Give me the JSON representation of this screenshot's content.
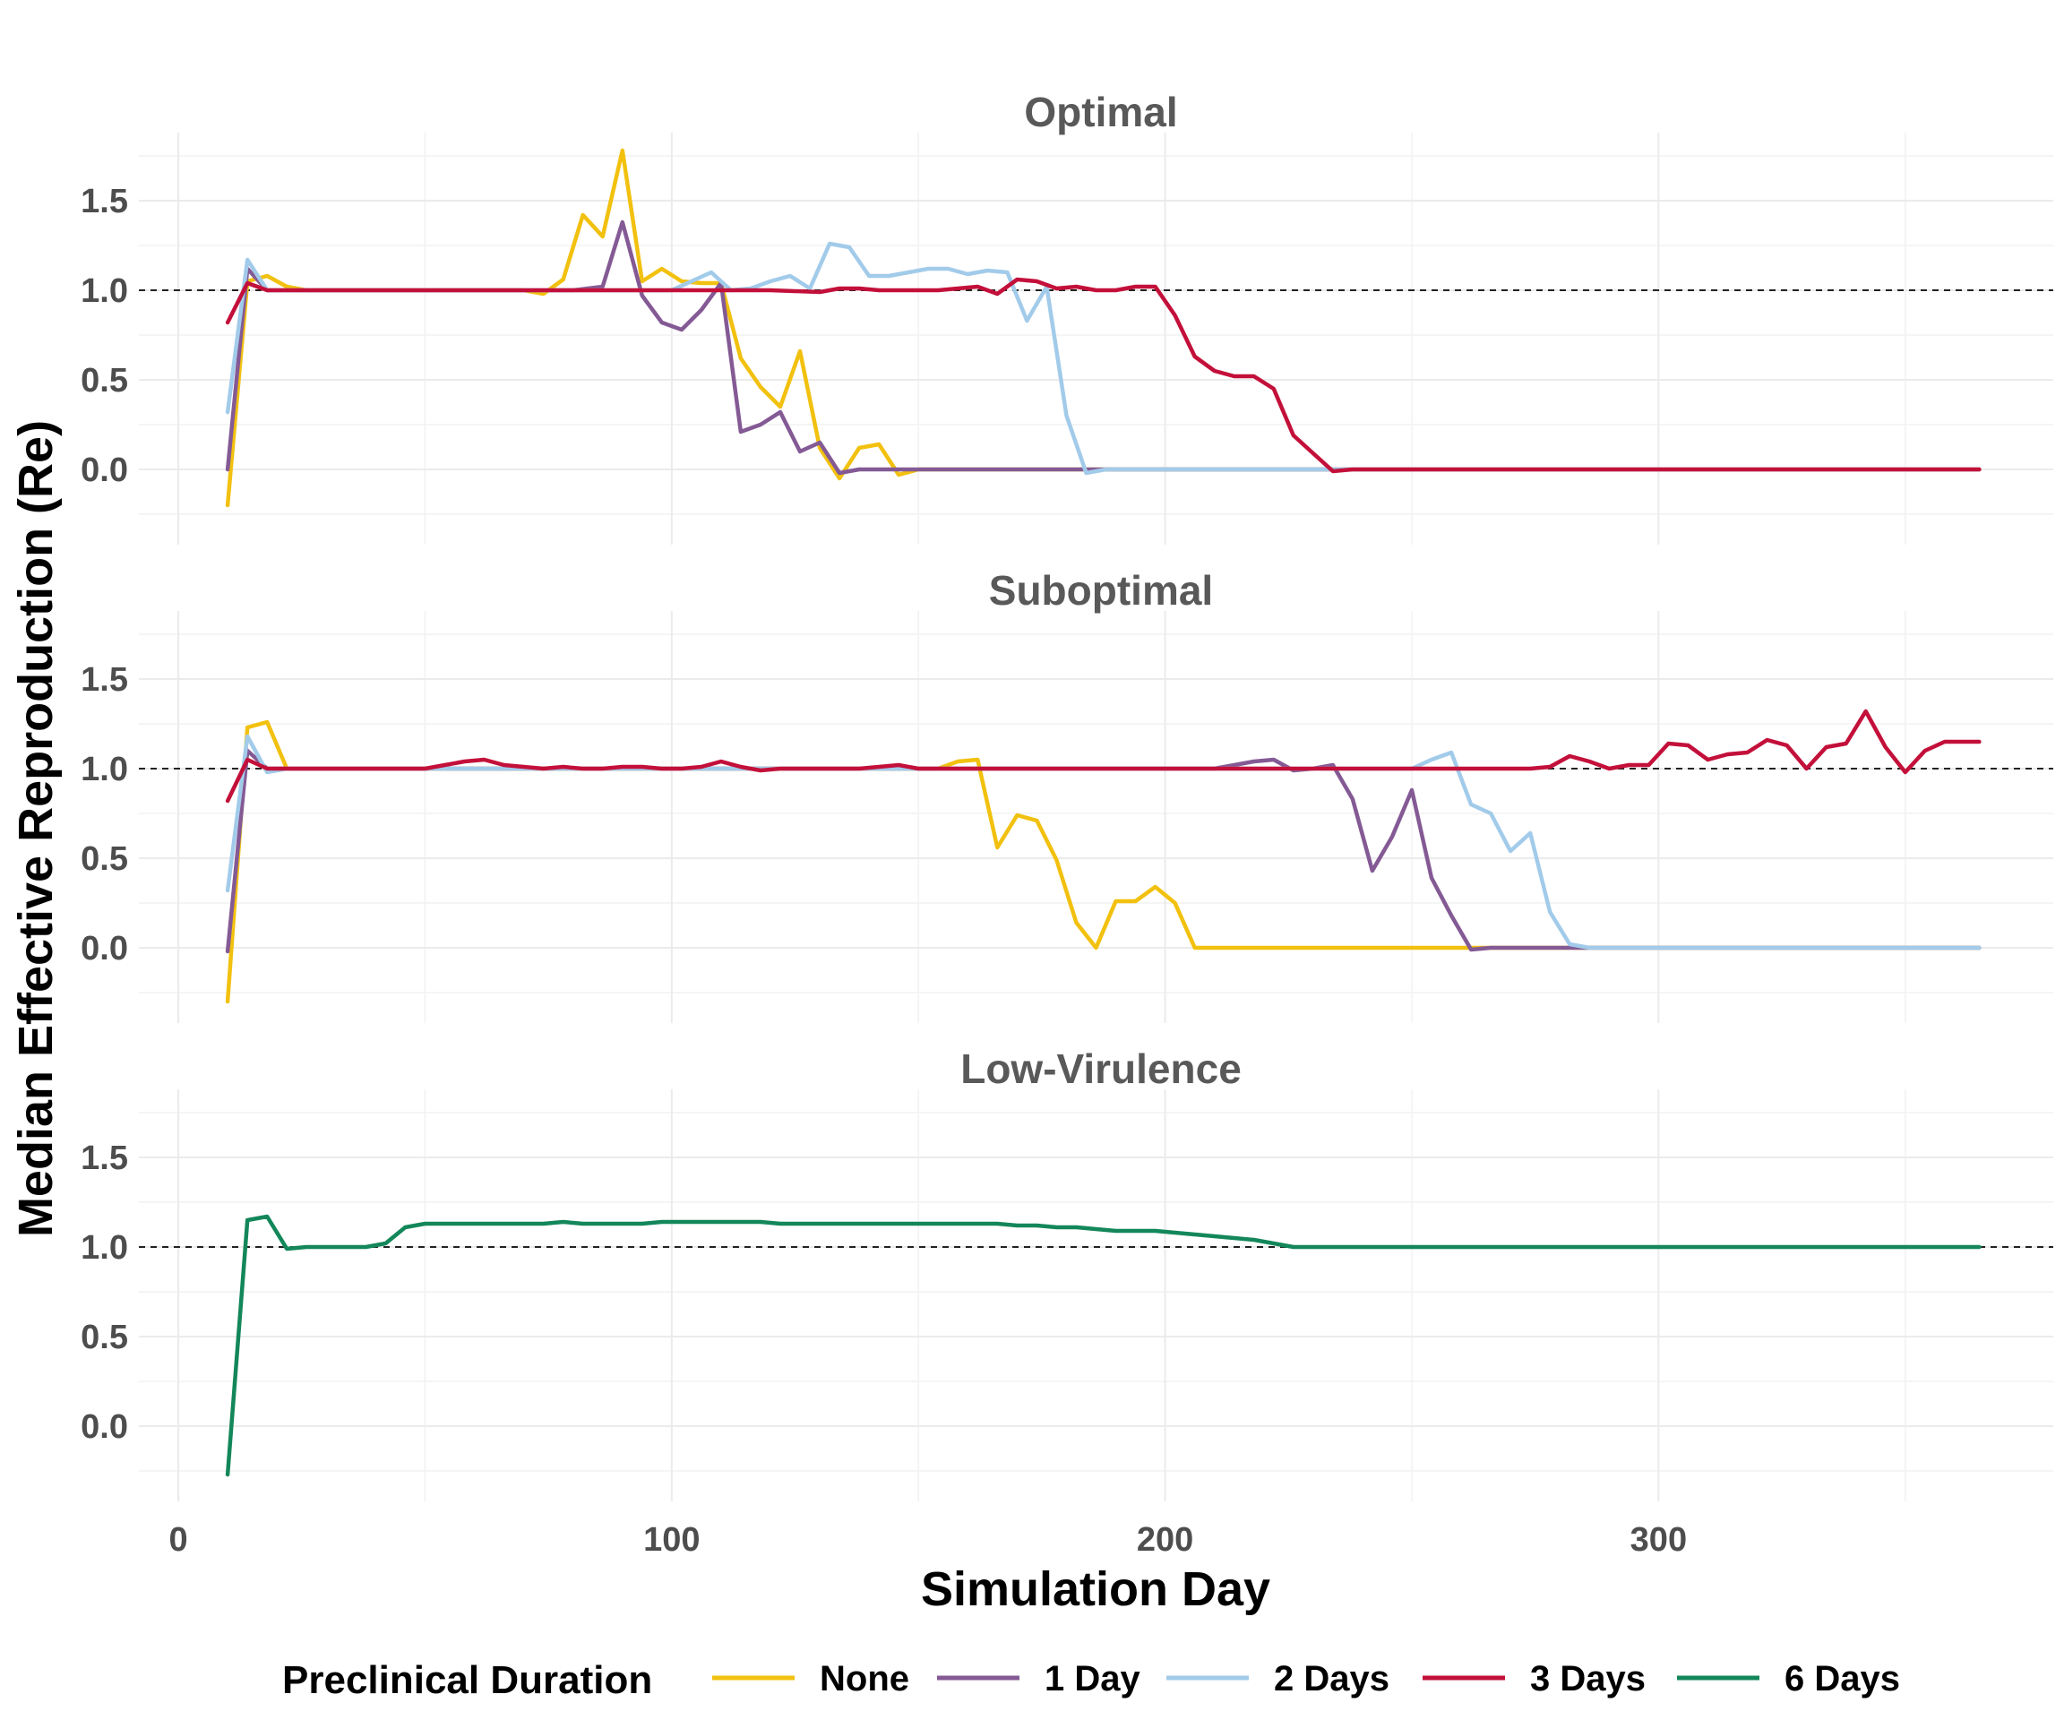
{
  "chart_data": {
    "type": "line",
    "xlabel": "Simulation Day",
    "ylabel": "Median Effective Reproduction (Re)",
    "xlim": [
      -8,
      380
    ],
    "ylim": [
      -0.42,
      1.88
    ],
    "x_ticks": [
      0,
      100,
      200,
      300
    ],
    "y_ticks": [
      0.0,
      0.5,
      1.0,
      1.5
    ],
    "y_tick_labels": [
      "0.0",
      "0.5",
      "1.0",
      "1.5"
    ],
    "grid": true,
    "reference_line": 1.0,
    "legend": {
      "position": "bottom",
      "title": "Preclinical Duration",
      "entries": [
        {
          "key": "none",
          "label": "None",
          "color": "#F2C10F"
        },
        {
          "key": "d1",
          "label": "1 Day",
          "color": "#845A95"
        },
        {
          "key": "d2",
          "label": "2 Days",
          "color": "#A2CBEA"
        },
        {
          "key": "d3",
          "label": "3 Days",
          "color": "#C3103A"
        },
        {
          "key": "d6",
          "label": "6 Days",
          "color": "#13875A"
        }
      ]
    },
    "panels": [
      {
        "title": "Optimal",
        "series": [
          {
            "key": "none",
            "x": [
              10,
              14,
              18,
              22,
              26,
              30,
              40,
              50,
              60,
              70,
              74,
              78,
              82,
              86,
              90,
              94,
              98,
              102,
              106,
              110,
              114,
              118,
              122,
              126,
              130,
              134,
              138,
              142,
              146,
              150,
              154,
              160,
              170,
              180,
              190,
              200,
              220,
              240,
              260,
              280,
              300,
              320,
              340,
              360,
              365
            ],
            "y": [
              -0.2,
              1.05,
              1.08,
              1.02,
              1.0,
              1.0,
              1.0,
              1.0,
              1.0,
              1.0,
              0.98,
              1.06,
              1.42,
              1.3,
              1.78,
              1.05,
              1.12,
              1.05,
              1.04,
              1.04,
              0.62,
              0.46,
              0.35,
              0.66,
              0.12,
              -0.05,
              0.12,
              0.14,
              -0.03,
              0.0,
              0.0,
              0.0,
              0.0,
              0.0,
              0.0,
              0.0,
              0.0,
              0.0,
              0.0,
              0.0,
              0.0,
              0.0,
              0.0,
              0.0,
              0.0
            ]
          },
          {
            "key": "d1",
            "x": [
              10,
              14,
              18,
              22,
              26,
              30,
              40,
              50,
              60,
              70,
              80,
              86,
              90,
              94,
              98,
              102,
              106,
              110,
              114,
              118,
              122,
              126,
              130,
              134,
              138,
              142,
              146,
              150,
              154,
              160,
              170,
              180,
              190,
              200,
              220,
              240,
              260,
              280,
              300,
              320,
              340,
              360,
              365
            ],
            "y": [
              0.0,
              1.12,
              1.0,
              1.0,
              1.0,
              1.0,
              1.0,
              1.0,
              1.0,
              1.0,
              1.0,
              1.02,
              1.38,
              0.97,
              0.82,
              0.78,
              0.89,
              1.04,
              0.21,
              0.25,
              0.32,
              0.1,
              0.15,
              -0.02,
              0.0,
              0.0,
              0.0,
              0.0,
              0.0,
              0.0,
              0.0,
              0.0,
              0.0,
              0.0,
              0.0,
              0.0,
              0.0,
              0.0,
              0.0,
              0.0,
              0.0,
              0.0,
              0.0
            ]
          },
          {
            "key": "d2",
            "x": [
              10,
              14,
              18,
              22,
              26,
              30,
              40,
              50,
              60,
              70,
              80,
              90,
              100,
              104,
              108,
              112,
              116,
              120,
              124,
              128,
              132,
              136,
              140,
              144,
              148,
              152,
              156,
              160,
              164,
              168,
              172,
              176,
              180,
              184,
              188,
              192,
              196,
              200,
              220,
              240,
              260,
              280,
              300,
              320,
              340,
              360,
              365
            ],
            "y": [
              0.32,
              1.17,
              1.0,
              1.0,
              1.0,
              1.0,
              1.0,
              1.0,
              1.0,
              1.0,
              1.0,
              1.0,
              1.0,
              1.05,
              1.1,
              1.0,
              1.01,
              1.05,
              1.08,
              1.01,
              1.26,
              1.24,
              1.08,
              1.08,
              1.1,
              1.12,
              1.12,
              1.09,
              1.11,
              1.1,
              0.83,
              1.02,
              0.3,
              -0.02,
              0.0,
              0.0,
              0.0,
              0.0,
              0.0,
              0.0,
              0.0,
              0.0,
              0.0,
              0.0,
              0.0,
              0.0,
              0.0
            ]
          },
          {
            "key": "d3",
            "x": [
              10,
              14,
              18,
              22,
              26,
              30,
              40,
              50,
              60,
              70,
              80,
              90,
              100,
              110,
              120,
              130,
              134,
              138,
              142,
              146,
              150,
              154,
              158,
              162,
              166,
              170,
              174,
              178,
              182,
              186,
              190,
              194,
              198,
              202,
              206,
              210,
              214,
              218,
              222,
              226,
              230,
              234,
              238,
              242,
              246,
              250,
              260,
              280,
              300,
              320,
              340,
              360,
              365
            ],
            "y": [
              0.82,
              1.04,
              1.0,
              1.0,
              1.0,
              1.0,
              1.0,
              1.0,
              1.0,
              1.0,
              1.0,
              1.0,
              1.0,
              1.0,
              1.0,
              0.99,
              1.01,
              1.01,
              1.0,
              1.0,
              1.0,
              1.0,
              1.01,
              1.02,
              0.98,
              1.06,
              1.05,
              1.01,
              1.02,
              1.0,
              1.0,
              1.02,
              1.02,
              0.86,
              0.63,
              0.55,
              0.52,
              0.52,
              0.45,
              0.19,
              0.09,
              -0.01,
              0.0,
              0.0,
              0.0,
              0.0,
              0.0,
              0.0,
              0.0,
              0.0,
              0.0,
              0.0,
              0.0
            ]
          }
        ]
      },
      {
        "title": "Suboptimal",
        "series": [
          {
            "key": "none",
            "x": [
              10,
              14,
              18,
              22,
              26,
              30,
              40,
              50,
              60,
              70,
              80,
              90,
              100,
              110,
              120,
              130,
              140,
              150,
              154,
              158,
              162,
              166,
              170,
              174,
              178,
              182,
              186,
              190,
              194,
              198,
              202,
              206,
              210,
              214,
              218,
              222,
              226,
              230,
              240,
              250,
              260,
              270,
              280,
              290,
              300,
              320,
              340,
              360,
              365
            ],
            "y": [
              -0.3,
              1.23,
              1.26,
              1.0,
              1.0,
              1.0,
              1.0,
              1.0,
              1.0,
              1.0,
              1.0,
              1.0,
              1.0,
              1.0,
              1.0,
              1.0,
              1.0,
              1.0,
              1.0,
              1.04,
              1.05,
              0.56,
              0.74,
              0.71,
              0.49,
              0.14,
              0.0,
              0.26,
              0.26,
              0.34,
              0.25,
              0.0,
              0.0,
              0.0,
              0.0,
              0.0,
              0.0,
              0.0,
              0.0,
              0.0,
              0.0,
              0.0,
              0.0,
              0.0,
              0.0,
              0.0,
              0.0,
              0.0,
              0.0
            ]
          },
          {
            "key": "d1",
            "x": [
              10,
              14,
              18,
              22,
              26,
              30,
              40,
              50,
              60,
              70,
              80,
              90,
              100,
              110,
              120,
              130,
              140,
              150,
              160,
              170,
              180,
              190,
              200,
              210,
              214,
              218,
              222,
              226,
              230,
              234,
              238,
              242,
              246,
              250,
              254,
              258,
              262,
              266,
              270,
              274,
              280,
              290,
              300,
              320,
              340,
              360,
              365
            ],
            "y": [
              -0.02,
              1.1,
              1.0,
              1.0,
              1.0,
              1.0,
              1.0,
              1.0,
              1.0,
              1.0,
              1.0,
              1.0,
              1.0,
              1.0,
              1.0,
              1.0,
              1.0,
              1.0,
              1.0,
              1.0,
              1.0,
              1.0,
              1.0,
              1.0,
              1.02,
              1.04,
              1.05,
              0.99,
              1.0,
              1.02,
              0.83,
              0.43,
              0.62,
              0.88,
              0.39,
              0.18,
              -0.01,
              0.0,
              0.0,
              0.0,
              0.0,
              0.0,
              0.0,
              0.0,
              0.0,
              0.0,
              0.0
            ]
          },
          {
            "key": "d2",
            "x": [
              10,
              14,
              18,
              22,
              26,
              30,
              40,
              50,
              60,
              70,
              80,
              90,
              100,
              110,
              120,
              130,
              140,
              150,
              160,
              170,
              180,
              190,
              200,
              210,
              220,
              230,
              240,
              250,
              254,
              258,
              262,
              266,
              270,
              274,
              278,
              282,
              286,
              290,
              300,
              320,
              340,
              360,
              365
            ],
            "y": [
              0.32,
              1.18,
              0.98,
              1.0,
              1.0,
              1.0,
              1.0,
              1.0,
              1.0,
              1.0,
              1.0,
              1.0,
              1.0,
              1.0,
              1.0,
              1.0,
              1.0,
              1.0,
              1.0,
              1.0,
              1.0,
              1.0,
              1.0,
              1.0,
              1.0,
              1.0,
              1.0,
              1.0,
              1.05,
              1.09,
              0.8,
              0.75,
              0.54,
              0.64,
              0.2,
              0.02,
              0.0,
              0.0,
              0.0,
              0.0,
              0.0,
              0.0,
              0.0
            ]
          },
          {
            "key": "d3",
            "x": [
              10,
              14,
              18,
              22,
              26,
              30,
              40,
              50,
              54,
              58,
              62,
              66,
              70,
              74,
              78,
              82,
              86,
              90,
              94,
              98,
              102,
              106,
              110,
              114,
              118,
              122,
              126,
              130,
              134,
              138,
              142,
              146,
              150,
              160,
              170,
              180,
              190,
              200,
              210,
              220,
              230,
              240,
              250,
              260,
              270,
              274,
              278,
              282,
              286,
              290,
              294,
              298,
              302,
              306,
              310,
              314,
              318,
              322,
              326,
              330,
              334,
              338,
              342,
              346,
              350,
              354,
              358,
              362,
              365
            ],
            "y": [
              0.82,
              1.05,
              1.0,
              1.0,
              1.0,
              1.0,
              1.0,
              1.0,
              1.02,
              1.04,
              1.05,
              1.02,
              1.01,
              1.0,
              1.01,
              1.0,
              1.0,
              1.01,
              1.01,
              1.0,
              1.0,
              1.01,
              1.04,
              1.01,
              0.99,
              1.0,
              1.0,
              1.0,
              1.0,
              1.0,
              1.01,
              1.02,
              1.0,
              1.0,
              1.0,
              1.0,
              1.0,
              1.0,
              1.0,
              1.0,
              1.0,
              1.0,
              1.0,
              1.0,
              1.0,
              1.0,
              1.01,
              1.07,
              1.04,
              1.0,
              1.02,
              1.02,
              1.14,
              1.13,
              1.05,
              1.08,
              1.09,
              1.16,
              1.13,
              1.0,
              1.12,
              1.14,
              1.32,
              1.12,
              0.98,
              1.1,
              1.15,
              1.15,
              1.15
            ]
          }
        ]
      },
      {
        "title": "Low-Virulence",
        "series": [
          {
            "key": "d6",
            "x": [
              10,
              14,
              18,
              22,
              26,
              30,
              34,
              38,
              42,
              46,
              50,
              54,
              58,
              62,
              66,
              70,
              74,
              78,
              82,
              86,
              90,
              94,
              98,
              102,
              106,
              110,
              114,
              118,
              122,
              126,
              130,
              134,
              138,
              142,
              146,
              150,
              154,
              158,
              162,
              166,
              170,
              174,
              178,
              182,
              186,
              190,
              194,
              198,
              202,
              206,
              210,
              214,
              218,
              222,
              226,
              230,
              240,
              260,
              280,
              300,
              320,
              340,
              360,
              365
            ],
            "y": [
              -0.27,
              1.15,
              1.17,
              0.99,
              1.0,
              1.0,
              1.0,
              1.0,
              1.02,
              1.11,
              1.13,
              1.13,
              1.13,
              1.13,
              1.13,
              1.13,
              1.13,
              1.14,
              1.13,
              1.13,
              1.13,
              1.13,
              1.14,
              1.14,
              1.14,
              1.14,
              1.14,
              1.14,
              1.13,
              1.13,
              1.13,
              1.13,
              1.13,
              1.13,
              1.13,
              1.13,
              1.13,
              1.13,
              1.13,
              1.13,
              1.12,
              1.12,
              1.11,
              1.11,
              1.1,
              1.09,
              1.09,
              1.09,
              1.08,
              1.07,
              1.06,
              1.05,
              1.04,
              1.02,
              1.0,
              1.0,
              1.0,
              1.0,
              1.0,
              1.0,
              1.0,
              1.0,
              1.0,
              1.0
            ]
          }
        ]
      }
    ]
  }
}
